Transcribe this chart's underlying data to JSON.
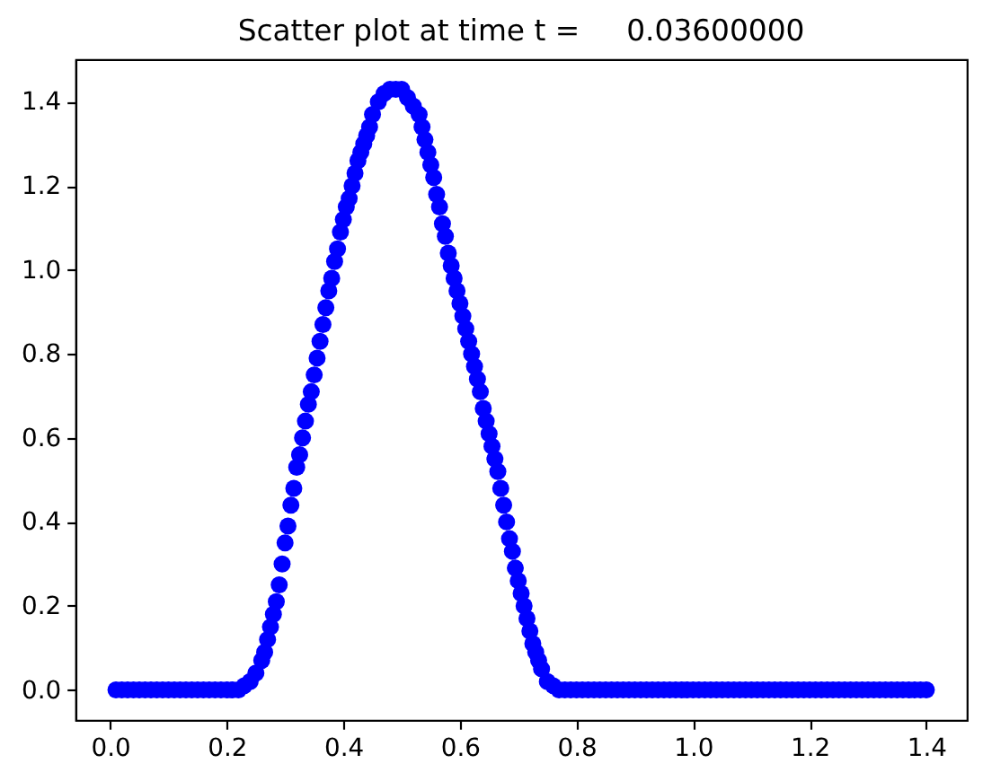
{
  "chart_data": {
    "type": "scatter",
    "title": "Scatter plot at time t =     0.03600000",
    "x": [
      0.01,
      0.02,
      0.03,
      0.04,
      0.05,
      0.06,
      0.07,
      0.08,
      0.09,
      0.1,
      0.11,
      0.12,
      0.13,
      0.14,
      0.15,
      0.16,
      0.17,
      0.18,
      0.19,
      0.2,
      0.21,
      0.22,
      0.23,
      0.24,
      0.25,
      0.26,
      0.265,
      0.27,
      0.275,
      0.28,
      0.285,
      0.29,
      0.295,
      0.3,
      0.305,
      0.31,
      0.315,
      0.32,
      0.325,
      0.33,
      0.335,
      0.34,
      0.345,
      0.35,
      0.355,
      0.36,
      0.365,
      0.37,
      0.375,
      0.38,
      0.385,
      0.39,
      0.395,
      0.4,
      0.405,
      0.41,
      0.415,
      0.42,
      0.425,
      0.43,
      0.435,
      0.44,
      0.445,
      0.45,
      0.46,
      0.47,
      0.48,
      0.49,
      0.5,
      0.51,
      0.52,
      0.53,
      0.535,
      0.54,
      0.545,
      0.55,
      0.555,
      0.56,
      0.565,
      0.57,
      0.575,
      0.58,
      0.585,
      0.59,
      0.595,
      0.6,
      0.605,
      0.61,
      0.615,
      0.62,
      0.625,
      0.63,
      0.635,
      0.64,
      0.645,
      0.65,
      0.655,
      0.66,
      0.665,
      0.67,
      0.675,
      0.68,
      0.685,
      0.69,
      0.695,
      0.7,
      0.705,
      0.71,
      0.715,
      0.72,
      0.725,
      0.73,
      0.735,
      0.74,
      0.75,
      0.76,
      0.77,
      0.78,
      0.79,
      0.8,
      0.81,
      0.82,
      0.83,
      0.84,
      0.85,
      0.86,
      0.87,
      0.88,
      0.89,
      0.9,
      0.91,
      0.92,
      0.93,
      0.94,
      0.95,
      0.96,
      0.97,
      0.98,
      0.99,
      1.0,
      1.01,
      1.02,
      1.03,
      1.04,
      1.05,
      1.06,
      1.07,
      1.08,
      1.09,
      1.1,
      1.11,
      1.12,
      1.13,
      1.14,
      1.15,
      1.16,
      1.17,
      1.18,
      1.19,
      1.2,
      1.21,
      1.22,
      1.23,
      1.24,
      1.25,
      1.26,
      1.27,
      1.28,
      1.29,
      1.3,
      1.31,
      1.32,
      1.33,
      1.34,
      1.35,
      1.36,
      1.37,
      1.38,
      1.39,
      1.4
    ],
    "values": [
      0,
      0,
      0,
      0,
      0,
      0,
      0,
      0,
      0,
      0,
      0,
      0,
      0,
      0,
      0,
      0,
      0,
      0,
      0,
      0,
      0,
      0,
      0.01,
      0.02,
      0.04,
      0.07,
      0.09,
      0.12,
      0.15,
      0.18,
      0.21,
      0.25,
      0.3,
      0.35,
      0.39,
      0.44,
      0.48,
      0.53,
      0.56,
      0.6,
      0.64,
      0.68,
      0.71,
      0.75,
      0.79,
      0.83,
      0.87,
      0.91,
      0.95,
      0.98,
      1.02,
      1.05,
      1.09,
      1.12,
      1.15,
      1.17,
      1.2,
      1.23,
      1.26,
      1.28,
      1.3,
      1.32,
      1.34,
      1.37,
      1.4,
      1.42,
      1.43,
      1.43,
      1.43,
      1.41,
      1.39,
      1.37,
      1.34,
      1.31,
      1.28,
      1.25,
      1.22,
      1.18,
      1.15,
      1.11,
      1.08,
      1.04,
      1.01,
      0.98,
      0.95,
      0.92,
      0.89,
      0.86,
      0.83,
      0.8,
      0.77,
      0.74,
      0.71,
      0.67,
      0.64,
      0.61,
      0.58,
      0.55,
      0.52,
      0.48,
      0.44,
      0.4,
      0.36,
      0.33,
      0.29,
      0.26,
      0.23,
      0.2,
      0.17,
      0.14,
      0.11,
      0.09,
      0.07,
      0.05,
      0.02,
      0.01,
      0,
      0,
      0,
      0,
      0,
      0,
      0,
      0,
      0,
      0,
      0,
      0,
      0,
      0,
      0,
      0,
      0,
      0,
      0,
      0,
      0,
      0,
      0,
      0,
      0,
      0,
      0,
      0,
      0,
      0,
      0,
      0,
      0,
      0,
      0,
      0,
      0,
      0,
      0,
      0,
      0,
      0,
      0,
      0,
      0,
      0,
      0,
      0,
      0,
      0,
      0,
      0,
      0,
      0,
      0,
      0,
      0,
      0,
      0,
      0,
      0,
      0,
      0,
      0
    ],
    "color": "#0000ff",
    "marker": "circle",
    "xlim": [
      -0.0595,
      1.4695
    ],
    "ylim": [
      -0.0715,
      1.5015
    ],
    "xticks": [
      {
        "value": 0,
        "label": "0.0"
      },
      0.2,
      0.4,
      0.6,
      0.8,
      {
        "value": 1,
        "label": "1.0"
      },
      1.2,
      1.4
    ],
    "yticks": [
      {
        "value": 0,
        "label": "0.0"
      },
      0.2,
      0.4,
      0.6,
      0.8,
      {
        "value": 1,
        "label": "1.0"
      },
      1.2,
      1.4
    ]
  }
}
